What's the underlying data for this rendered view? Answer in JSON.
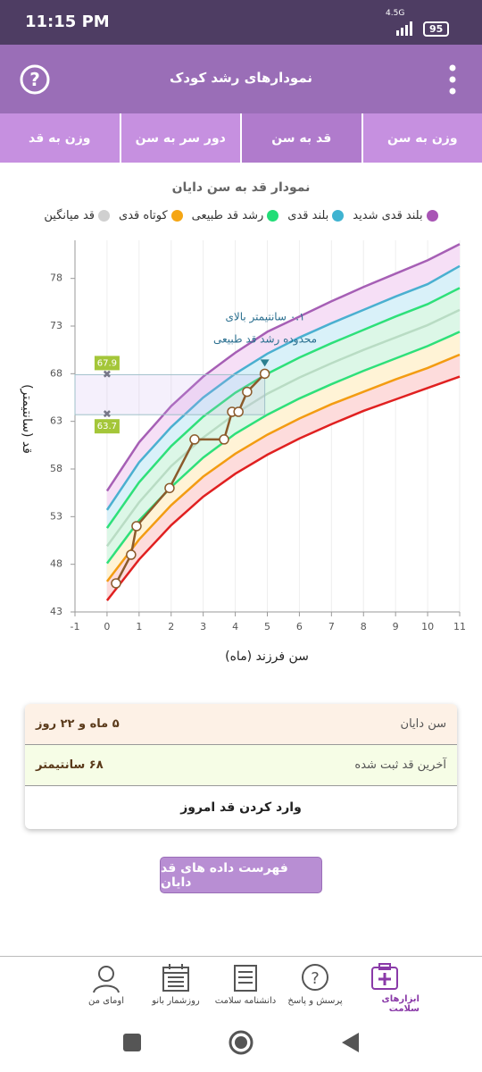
{
  "status_bar": {
    "time": "11:15 PM",
    "network": "4.5G",
    "battery": "95"
  },
  "app_bar": {
    "title": "نمودارهای رشد کودک"
  },
  "tabs": [
    {
      "label": "وزن به سن",
      "active": false
    },
    {
      "label": "قد به سن",
      "active": true
    },
    {
      "label": "دور سر به سن",
      "active": false
    },
    {
      "label": "وزن به قد",
      "active": false
    }
  ],
  "chart": {
    "type": "line",
    "title": "نمودار قد به سن دایان",
    "legend": [
      {
        "name": "بلند قدی شدید",
        "color": "#a855b5"
      },
      {
        "name": "بلند قدی",
        "color": "#3fb3d1"
      },
      {
        "name": "رشد قد طبیعی",
        "color": "#22dd77"
      },
      {
        "name": "کوتاه قدی",
        "color": "#f5a614"
      },
      {
        "name": "قد میانگین",
        "color": "#d0d0d0"
      }
    ],
    "ylabel": "قد (سانتیمتر)",
    "xlabel": "سن فرزند (ماه)",
    "xlim": [
      -1,
      11
    ],
    "xticks": [
      -1,
      0,
      1,
      2,
      3,
      4,
      5,
      6,
      7,
      8,
      9,
      10,
      11
    ],
    "ylim": [
      43,
      82
    ],
    "yticks": [
      43,
      48,
      53,
      58,
      63,
      68,
      73,
      78
    ],
    "x": [
      0,
      1,
      2,
      3,
      4,
      5,
      6,
      7,
      8,
      9,
      10,
      11
    ],
    "series": [
      {
        "color": "#e02020",
        "values": [
          44.2,
          48.5,
          52.1,
          55.1,
          57.5,
          59.5,
          61.2,
          62.7,
          64.1,
          65.3,
          66.5,
          67.7
        ]
      },
      {
        "color": "#f39c12",
        "values": [
          46.2,
          50.6,
          54.2,
          57.2,
          59.6,
          61.6,
          63.3,
          64.8,
          66.1,
          67.4,
          68.6,
          70.0
        ]
      },
      {
        "color": "#2ee07a",
        "values": [
          48.1,
          52.6,
          56.1,
          59.2,
          61.7,
          63.7,
          65.4,
          66.9,
          68.3,
          69.6,
          70.9,
          72.4
        ]
      },
      {
        "color": "#b9dcc4",
        "values": [
          49.9,
          54.5,
          58.3,
          61.3,
          63.8,
          65.9,
          67.6,
          69.1,
          70.5,
          71.8,
          73.1,
          74.7
        ]
      },
      {
        "color": "#2ee07a",
        "values": [
          51.8,
          56.6,
          60.4,
          63.5,
          66.0,
          68.0,
          69.7,
          71.2,
          72.6,
          74.0,
          75.3,
          77.0
        ]
      },
      {
        "color": "#4ab0d0",
        "values": [
          53.7,
          58.7,
          62.4,
          65.5,
          68.0,
          70.1,
          71.8,
          73.3,
          74.7,
          76.1,
          77.4,
          79.3
        ]
      },
      {
        "color": "#a65fb5",
        "values": [
          55.7,
          60.8,
          64.6,
          67.7,
          70.2,
          72.4,
          74.0,
          75.6,
          77.1,
          78.5,
          79.9,
          81.6
        ]
      }
    ],
    "child": {
      "color": "#8b5a2b",
      "x": [
        0.28,
        0.75,
        0.92,
        1.95,
        2.73,
        3.65,
        3.9,
        4.1,
        4.37,
        4.92
      ],
      "values": [
        46.0,
        49.0,
        52.0,
        56.0,
        61.1,
        61.1,
        64.0,
        64.0,
        66.1,
        68.0
      ]
    },
    "range_labels": [
      67.9,
      63.7
    ],
    "annotation": [
      "٠.١ سانتیمتر بالای",
      "محدوده رشد قد طبیعی"
    ]
  },
  "summary": {
    "rows": [
      {
        "label": "سن دایان",
        "value": "۵ ماه و ۲۲ روز"
      },
      {
        "label": "آخرین قد ثبت شده",
        "value": "۶۸ سانتیمتر"
      }
    ],
    "action": "وارد کردن قد امروز"
  },
  "list_button": "فهرست داده های قد دایان",
  "bottom_nav": [
    {
      "label": "ابزارهای سلامت",
      "active": true
    },
    {
      "label": "پرسش و پاسخ",
      "active": false
    },
    {
      "label": "دانشنامه سلامت",
      "active": false
    },
    {
      "label": "روزشمار بانو",
      "active": false
    },
    {
      "label": "اومای من",
      "active": false
    }
  ]
}
